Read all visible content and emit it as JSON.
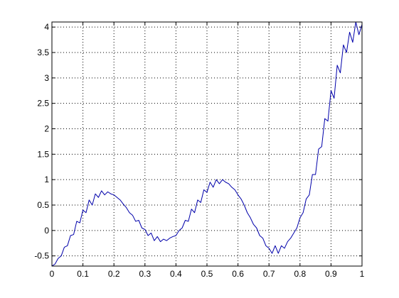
{
  "chart_data": {
    "type": "line",
    "title": "",
    "xlabel": "",
    "ylabel": "",
    "xlim": [
      0,
      1
    ],
    "ylim": [
      -0.7,
      4.1
    ],
    "grid": true,
    "x_ticks": [
      0,
      0.1,
      0.2,
      0.3,
      0.4,
      0.5,
      0.6,
      0.7,
      0.8,
      0.9,
      1
    ],
    "x_tick_labels": [
      "0",
      "0.1",
      "0.2",
      "0.3",
      "0.4",
      "0.5",
      "0.6",
      "0.7",
      "0.8",
      "0.9",
      "1"
    ],
    "y_ticks": [
      -0.5,
      0,
      0.5,
      1,
      1.5,
      2,
      2.5,
      3,
      3.5,
      4
    ],
    "y_tick_labels": [
      "-0.5",
      "0",
      "0.5",
      "1",
      "1.5",
      "2",
      "2.5",
      "3",
      "3.5",
      "4"
    ],
    "series": [
      {
        "color": "#0000aa",
        "x": [
          0,
          0.01,
          0.02,
          0.03,
          0.04,
          0.05,
          0.06,
          0.07,
          0.08,
          0.09,
          0.1,
          0.11,
          0.12,
          0.13,
          0.14,
          0.15,
          0.16,
          0.17,
          0.18,
          0.19,
          0.2,
          0.21,
          0.22,
          0.23,
          0.24,
          0.25,
          0.26,
          0.27,
          0.28,
          0.29,
          0.3,
          0.31,
          0.32,
          0.33,
          0.34,
          0.35,
          0.36,
          0.37,
          0.38,
          0.39,
          0.4,
          0.41,
          0.42,
          0.43,
          0.44,
          0.45,
          0.46,
          0.47,
          0.48,
          0.49,
          0.5,
          0.51,
          0.52,
          0.53,
          0.54,
          0.55,
          0.56,
          0.57,
          0.58,
          0.59,
          0.6,
          0.61,
          0.62,
          0.63,
          0.64,
          0.65,
          0.66,
          0.67,
          0.68,
          0.69,
          0.7,
          0.71,
          0.72,
          0.73,
          0.74,
          0.75,
          0.76,
          0.77,
          0.78,
          0.79,
          0.8,
          0.81,
          0.82,
          0.83,
          0.84,
          0.85,
          0.86,
          0.87,
          0.88,
          0.89,
          0.9,
          0.91,
          0.92,
          0.93,
          0.94,
          0.95,
          0.96,
          0.97,
          0.98,
          0.99,
          1
        ],
        "y": [
          -0.7,
          -0.66,
          -0.55,
          -0.5,
          -0.33,
          -0.3,
          -0.1,
          -0.08,
          0.18,
          0.15,
          0.4,
          0.35,
          0.6,
          0.5,
          0.72,
          0.65,
          0.78,
          0.7,
          0.76,
          0.72,
          0.7,
          0.65,
          0.6,
          0.52,
          0.45,
          0.35,
          0.3,
          0.18,
          0.2,
          0.05,
          0.02,
          -0.1,
          -0.05,
          -0.2,
          -0.12,
          -0.22,
          -0.17,
          -0.2,
          -0.15,
          -0.12,
          -0.1,
          0.0,
          0.05,
          0.2,
          0.18,
          0.42,
          0.35,
          0.6,
          0.55,
          0.8,
          0.75,
          0.95,
          0.85,
          1.0,
          0.92,
          1.0,
          0.95,
          0.92,
          0.85,
          0.8,
          0.7,
          0.62,
          0.5,
          0.35,
          0.25,
          0.12,
          0.05,
          -0.1,
          -0.15,
          -0.3,
          -0.35,
          -0.45,
          -0.3,
          -0.45,
          -0.3,
          -0.35,
          -0.22,
          -0.15,
          -0.05,
          0.05,
          0.25,
          0.35,
          0.62,
          0.7,
          1.1,
          1.1,
          1.6,
          1.65,
          2.2,
          2.15,
          2.75,
          2.6,
          3.25,
          3.1,
          3.65,
          3.5,
          3.9,
          3.7,
          4.1,
          3.85,
          4.05
        ]
      }
    ]
  }
}
